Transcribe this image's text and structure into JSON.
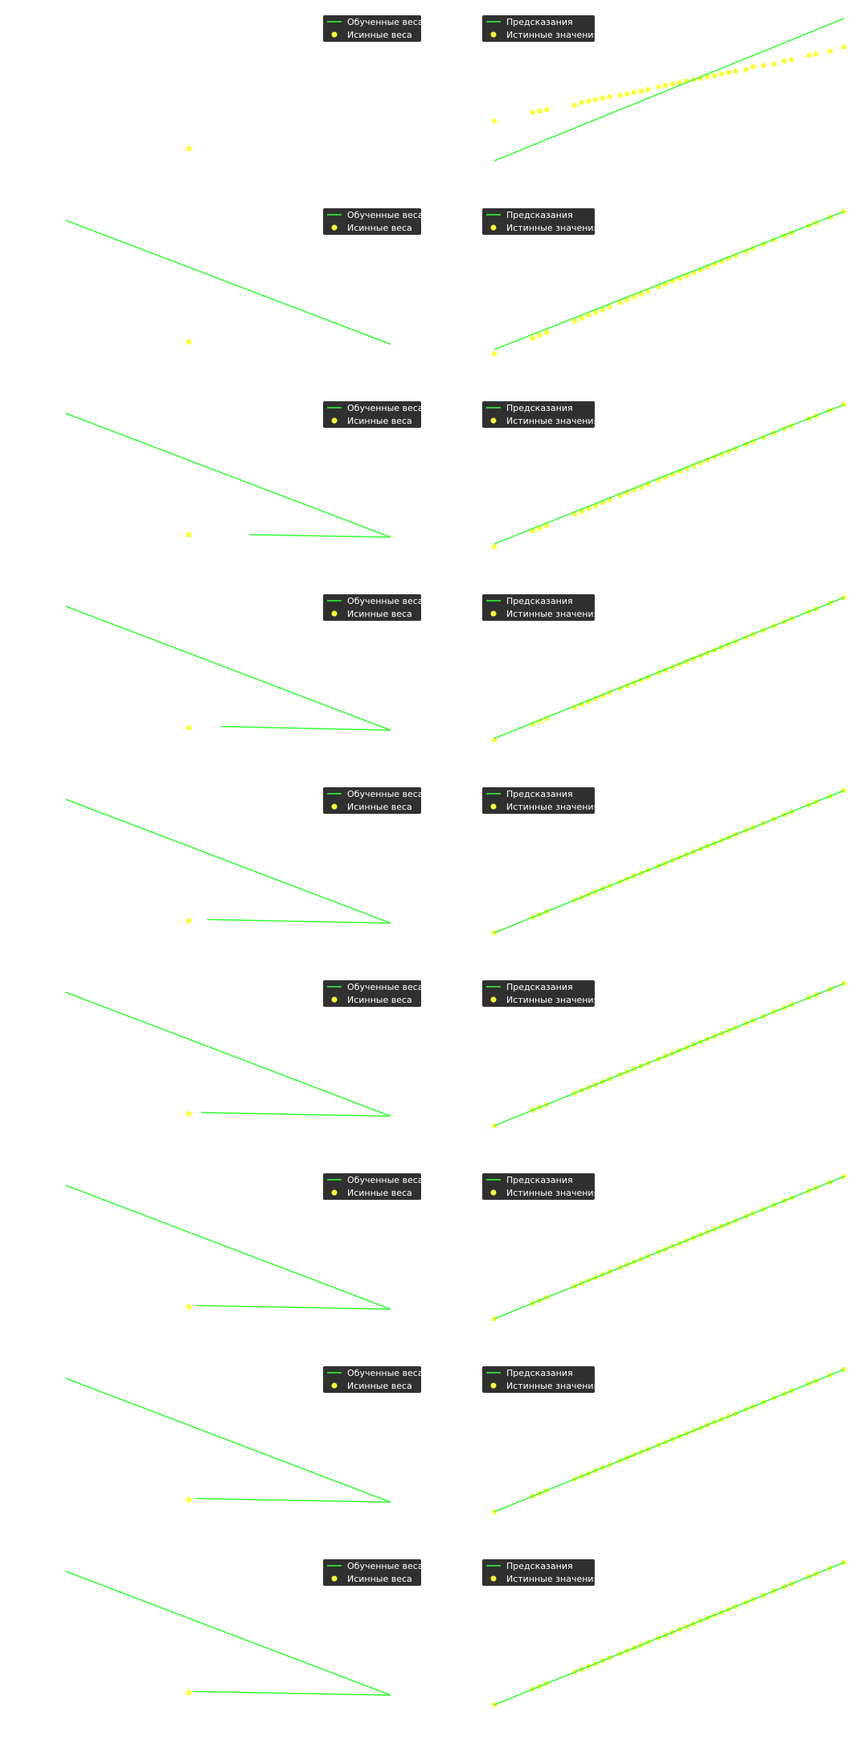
{
  "colors": {
    "line": "#33ff33",
    "points": "#ffff33",
    "legend_bg": "#303030",
    "legend_text": "#ffffff"
  },
  "legends": {
    "weights": {
      "line_label": "Обученные веса",
      "point_label": "Исинные веса"
    },
    "predictions": {
      "line_label": "Предсказания",
      "point_label": "Истинные значения"
    }
  },
  "chart_data": {
    "type": "line",
    "rows": 9,
    "weights": {
      "true_weights": [
        [
          0.0,
          0.0
        ]
      ],
      "learned_paths": [
        [],
        [
          [
            -1.0,
            1.0
          ],
          [
            1.0,
            0.0
          ]
        ],
        [
          [
            -1.0,
            1.0
          ],
          [
            1.0,
            0.0
          ],
          [
            0.3,
            0.02
          ]
        ],
        [
          [
            -1.0,
            1.0
          ],
          [
            1.0,
            0.0
          ],
          [
            0.16,
            0.03
          ]
        ],
        [
          [
            -1.0,
            1.0
          ],
          [
            1.0,
            0.0
          ],
          [
            0.09,
            0.03
          ]
        ],
        [
          [
            -1.0,
            1.0
          ],
          [
            1.0,
            0.0
          ],
          [
            0.06,
            0.03
          ]
        ],
        [
          [
            -1.0,
            1.0
          ],
          [
            1.0,
            0.0
          ],
          [
            0.04,
            0.03
          ]
        ],
        [
          [
            -1.0,
            1.0
          ],
          [
            1.0,
            0.0
          ],
          [
            0.03,
            0.03
          ]
        ],
        [
          [
            -1.0,
            1.0
          ],
          [
            1.0,
            0.0
          ],
          [
            0.02,
            0.03
          ]
        ]
      ]
    },
    "predictions": {
      "true_points": {
        "x": [
          0.0,
          0.11,
          0.13,
          0.15,
          0.23,
          0.25,
          0.27,
          0.29,
          0.31,
          0.33,
          0.36,
          0.38,
          0.4,
          0.42,
          0.44,
          0.47,
          0.49,
          0.51,
          0.53,
          0.55,
          0.57,
          0.59,
          0.61,
          0.63,
          0.65,
          0.67,
          0.69,
          0.72,
          0.74,
          0.77,
          0.8,
          0.83,
          0.85,
          0.9,
          0.92,
          0.96,
          1.0
        ],
        "y": [
          0.28,
          0.34,
          0.35,
          0.36,
          0.39,
          0.41,
          0.42,
          0.43,
          0.44,
          0.45,
          0.46,
          0.47,
          0.48,
          0.49,
          0.5,
          0.52,
          0.53,
          0.54,
          0.55,
          0.56,
          0.57,
          0.58,
          0.59,
          0.6,
          0.61,
          0.62,
          0.63,
          0.64,
          0.66,
          0.67,
          0.68,
          0.7,
          0.71,
          0.74,
          0.75,
          0.77,
          0.8
        ]
      },
      "fits": [
        {
          "slope": 1.0,
          "intercept": 0.0
        },
        {
          "slope": 0.97,
          "intercept": 0.03
        },
        {
          "slope": 0.98,
          "intercept": 0.02
        },
        {
          "slope": 0.99,
          "intercept": 0.01
        },
        {
          "slope": 1.0,
          "intercept": 0.0
        },
        {
          "slope": 1.0,
          "intercept": 0.0
        },
        {
          "slope": 1.0,
          "intercept": 0.0
        },
        {
          "slope": 1.0,
          "intercept": 0.0
        },
        {
          "slope": 1.0,
          "intercept": 0.0
        }
      ],
      "first_row_point_scale": 0.8
    }
  }
}
